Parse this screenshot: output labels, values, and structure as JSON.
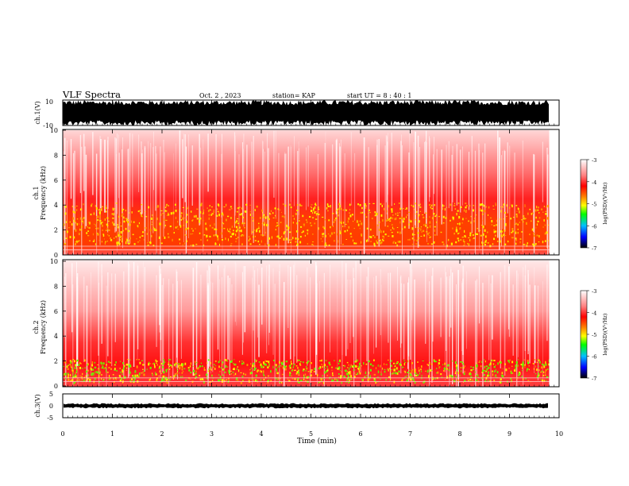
{
  "header": {
    "title": "VLF Spectra",
    "date": "Oct. 2 , 2023",
    "station": "station= KAP",
    "start": "start  UT =  8 : 40 : 1"
  },
  "colorbar": {
    "label": "log(PSD)(V²/Hz)",
    "ticks": [
      "-3",
      "-4",
      "-5",
      "-6",
      "-7"
    ]
  },
  "chart_data": [
    {
      "type": "line",
      "panel": "ch1-waveform",
      "ylabel": "ch.1(V)",
      "ylim": [
        -10,
        10
      ],
      "yticks": [
        "10",
        "-10"
      ],
      "xlim": [
        0,
        10
      ],
      "x_extent": 9.8,
      "description_value": "saturated waveform spanning about -10 to 10 V"
    },
    {
      "type": "heatmap",
      "panel": "ch1-spectrogram",
      "ylabel": "ch.1",
      "ylabel2": "Frequency (kHz)",
      "ylim": [
        0,
        10
      ],
      "yticks": [
        "10",
        "8",
        "6",
        "4",
        "2",
        "0"
      ],
      "xlim": [
        0,
        10
      ],
      "x_extent": 9.8,
      "color_scale": "log(PSD)",
      "clim": [
        -7,
        -3
      ]
    },
    {
      "type": "heatmap",
      "panel": "ch2-spectrogram",
      "ylabel": "ch.2",
      "ylabel2": "Frequency (kHz)",
      "ylim": [
        0,
        10
      ],
      "yticks": [
        "10",
        "8",
        "6",
        "4",
        "2",
        "0"
      ],
      "xlim": [
        0,
        10
      ],
      "x_extent": 9.8,
      "color_scale": "log(PSD)",
      "clim": [
        -7,
        -3
      ]
    },
    {
      "type": "line",
      "panel": "ch3-waveform",
      "ylabel": "ch.3(V)",
      "ylim": [
        -5,
        5
      ],
      "yticks": [
        "5",
        "0",
        "-5"
      ],
      "xlim": [
        0,
        10
      ],
      "x_extent": 9.8,
      "xlabel": "Time (min)",
      "xticks": [
        "0",
        "1",
        "2",
        "3",
        "4",
        "5",
        "6",
        "7",
        "8",
        "9",
        "10"
      ]
    }
  ]
}
